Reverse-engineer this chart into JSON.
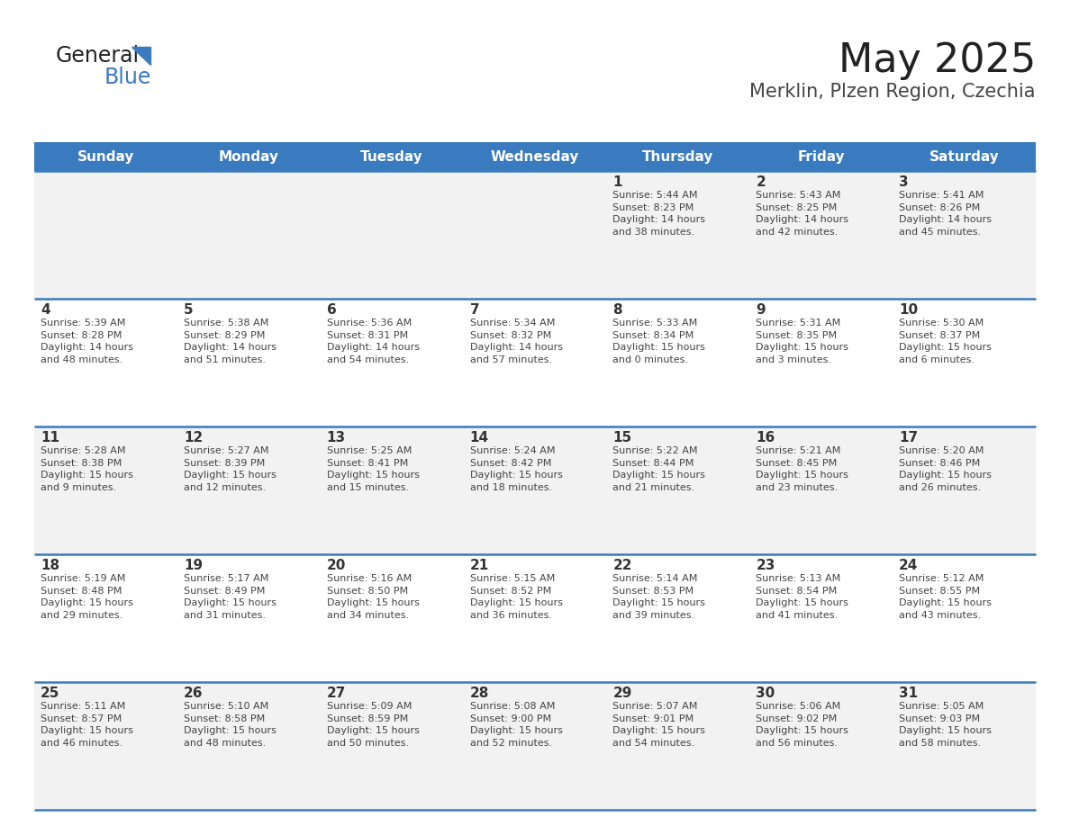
{
  "title": "May 2025",
  "subtitle": "Merklin, Plzen Region, Czechia",
  "days_of_week": [
    "Sunday",
    "Monday",
    "Tuesday",
    "Wednesday",
    "Thursday",
    "Friday",
    "Saturday"
  ],
  "header_bg": "#3a7abf",
  "header_text": "#ffffff",
  "row_bg_odd": "#f2f2f2",
  "row_bg_even": "#ffffff",
  "separator_color": "#3a7abf",
  "day_number_color": "#333333",
  "text_color": "#444444",
  "calendar_data": [
    [
      {
        "day": null,
        "info": null
      },
      {
        "day": null,
        "info": null
      },
      {
        "day": null,
        "info": null
      },
      {
        "day": null,
        "info": null
      },
      {
        "day": 1,
        "info": "Sunrise: 5:44 AM\nSunset: 8:23 PM\nDaylight: 14 hours\nand 38 minutes."
      },
      {
        "day": 2,
        "info": "Sunrise: 5:43 AM\nSunset: 8:25 PM\nDaylight: 14 hours\nand 42 minutes."
      },
      {
        "day": 3,
        "info": "Sunrise: 5:41 AM\nSunset: 8:26 PM\nDaylight: 14 hours\nand 45 minutes."
      }
    ],
    [
      {
        "day": 4,
        "info": "Sunrise: 5:39 AM\nSunset: 8:28 PM\nDaylight: 14 hours\nand 48 minutes."
      },
      {
        "day": 5,
        "info": "Sunrise: 5:38 AM\nSunset: 8:29 PM\nDaylight: 14 hours\nand 51 minutes."
      },
      {
        "day": 6,
        "info": "Sunrise: 5:36 AM\nSunset: 8:31 PM\nDaylight: 14 hours\nand 54 minutes."
      },
      {
        "day": 7,
        "info": "Sunrise: 5:34 AM\nSunset: 8:32 PM\nDaylight: 14 hours\nand 57 minutes."
      },
      {
        "day": 8,
        "info": "Sunrise: 5:33 AM\nSunset: 8:34 PM\nDaylight: 15 hours\nand 0 minutes."
      },
      {
        "day": 9,
        "info": "Sunrise: 5:31 AM\nSunset: 8:35 PM\nDaylight: 15 hours\nand 3 minutes."
      },
      {
        "day": 10,
        "info": "Sunrise: 5:30 AM\nSunset: 8:37 PM\nDaylight: 15 hours\nand 6 minutes."
      }
    ],
    [
      {
        "day": 11,
        "info": "Sunrise: 5:28 AM\nSunset: 8:38 PM\nDaylight: 15 hours\nand 9 minutes."
      },
      {
        "day": 12,
        "info": "Sunrise: 5:27 AM\nSunset: 8:39 PM\nDaylight: 15 hours\nand 12 minutes."
      },
      {
        "day": 13,
        "info": "Sunrise: 5:25 AM\nSunset: 8:41 PM\nDaylight: 15 hours\nand 15 minutes."
      },
      {
        "day": 14,
        "info": "Sunrise: 5:24 AM\nSunset: 8:42 PM\nDaylight: 15 hours\nand 18 minutes."
      },
      {
        "day": 15,
        "info": "Sunrise: 5:22 AM\nSunset: 8:44 PM\nDaylight: 15 hours\nand 21 minutes."
      },
      {
        "day": 16,
        "info": "Sunrise: 5:21 AM\nSunset: 8:45 PM\nDaylight: 15 hours\nand 23 minutes."
      },
      {
        "day": 17,
        "info": "Sunrise: 5:20 AM\nSunset: 8:46 PM\nDaylight: 15 hours\nand 26 minutes."
      }
    ],
    [
      {
        "day": 18,
        "info": "Sunrise: 5:19 AM\nSunset: 8:48 PM\nDaylight: 15 hours\nand 29 minutes."
      },
      {
        "day": 19,
        "info": "Sunrise: 5:17 AM\nSunset: 8:49 PM\nDaylight: 15 hours\nand 31 minutes."
      },
      {
        "day": 20,
        "info": "Sunrise: 5:16 AM\nSunset: 8:50 PM\nDaylight: 15 hours\nand 34 minutes."
      },
      {
        "day": 21,
        "info": "Sunrise: 5:15 AM\nSunset: 8:52 PM\nDaylight: 15 hours\nand 36 minutes."
      },
      {
        "day": 22,
        "info": "Sunrise: 5:14 AM\nSunset: 8:53 PM\nDaylight: 15 hours\nand 39 minutes."
      },
      {
        "day": 23,
        "info": "Sunrise: 5:13 AM\nSunset: 8:54 PM\nDaylight: 15 hours\nand 41 minutes."
      },
      {
        "day": 24,
        "info": "Sunrise: 5:12 AM\nSunset: 8:55 PM\nDaylight: 15 hours\nand 43 minutes."
      }
    ],
    [
      {
        "day": 25,
        "info": "Sunrise: 5:11 AM\nSunset: 8:57 PM\nDaylight: 15 hours\nand 46 minutes."
      },
      {
        "day": 26,
        "info": "Sunrise: 5:10 AM\nSunset: 8:58 PM\nDaylight: 15 hours\nand 48 minutes."
      },
      {
        "day": 27,
        "info": "Sunrise: 5:09 AM\nSunset: 8:59 PM\nDaylight: 15 hours\nand 50 minutes."
      },
      {
        "day": 28,
        "info": "Sunrise: 5:08 AM\nSunset: 9:00 PM\nDaylight: 15 hours\nand 52 minutes."
      },
      {
        "day": 29,
        "info": "Sunrise: 5:07 AM\nSunset: 9:01 PM\nDaylight: 15 hours\nand 54 minutes."
      },
      {
        "day": 30,
        "info": "Sunrise: 5:06 AM\nSunset: 9:02 PM\nDaylight: 15 hours\nand 56 minutes."
      },
      {
        "day": 31,
        "info": "Sunrise: 5:05 AM\nSunset: 9:03 PM\nDaylight: 15 hours\nand 58 minutes."
      }
    ]
  ],
  "logo_triangle_color": "#3a7abf",
  "title_fontsize": 32,
  "subtitle_fontsize": 15,
  "header_fontsize": 11,
  "day_num_fontsize": 11,
  "info_fontsize": 8
}
